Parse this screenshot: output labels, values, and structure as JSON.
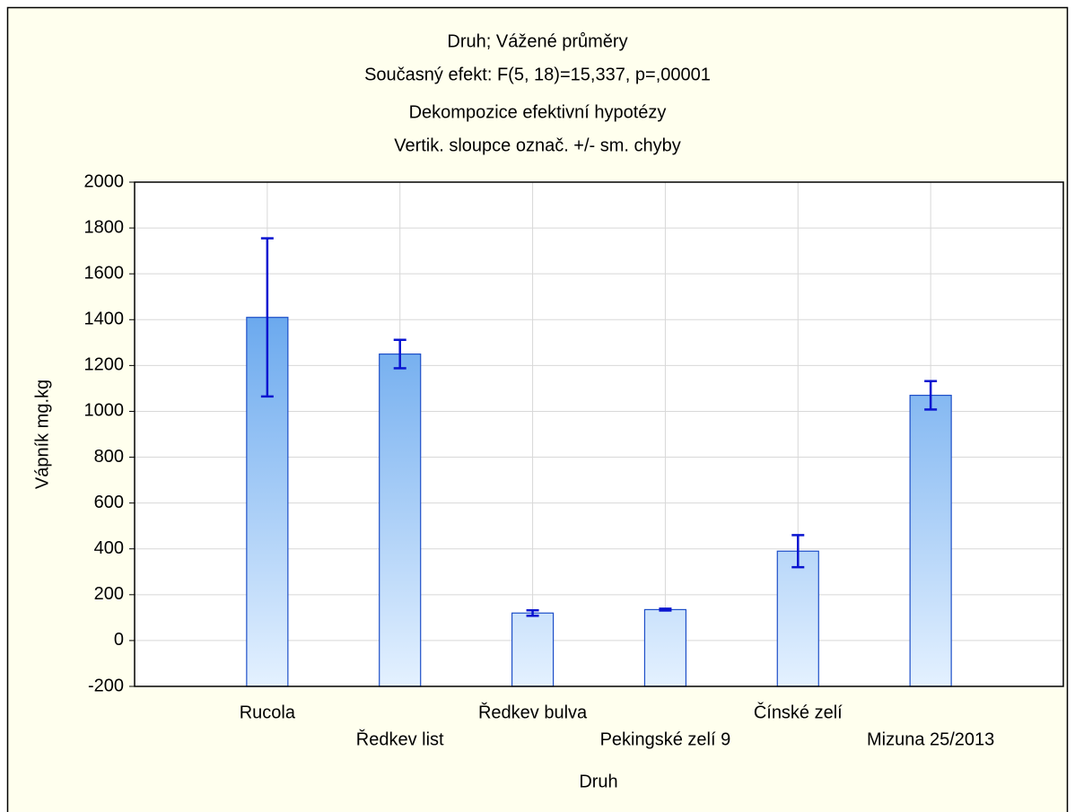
{
  "chart_data": {
    "type": "bar",
    "title": "Druh; Vážené průměry",
    "subtitles": [
      "Současný efekt: F(5, 18)=15,337, p=,00001",
      "Dekompozice efektivní hypotézy",
      "Vertik. sloupce označ. +/- sm. chyby"
    ],
    "x_label": "Druh",
    "y_label": "Vápník mg.kg",
    "categories": [
      "Rucola",
      "Ředkev list",
      "Ředkev bulva",
      "Pekingské zelí 9",
      "Čínské zelí",
      "Mizuna 25/2013"
    ],
    "values": [
      1410,
      1250,
      120,
      135,
      390,
      1070
    ],
    "errors": [
      345,
      62,
      12,
      4,
      70,
      62
    ],
    "color": "#3f8fe8",
    "error_color": "#0a14d0",
    "ylim": [
      -200,
      2000
    ],
    "yticks": [
      -200,
      0,
      200,
      400,
      600,
      800,
      1000,
      1200,
      1400,
      1600,
      1800,
      2000
    ],
    "grid": true
  }
}
